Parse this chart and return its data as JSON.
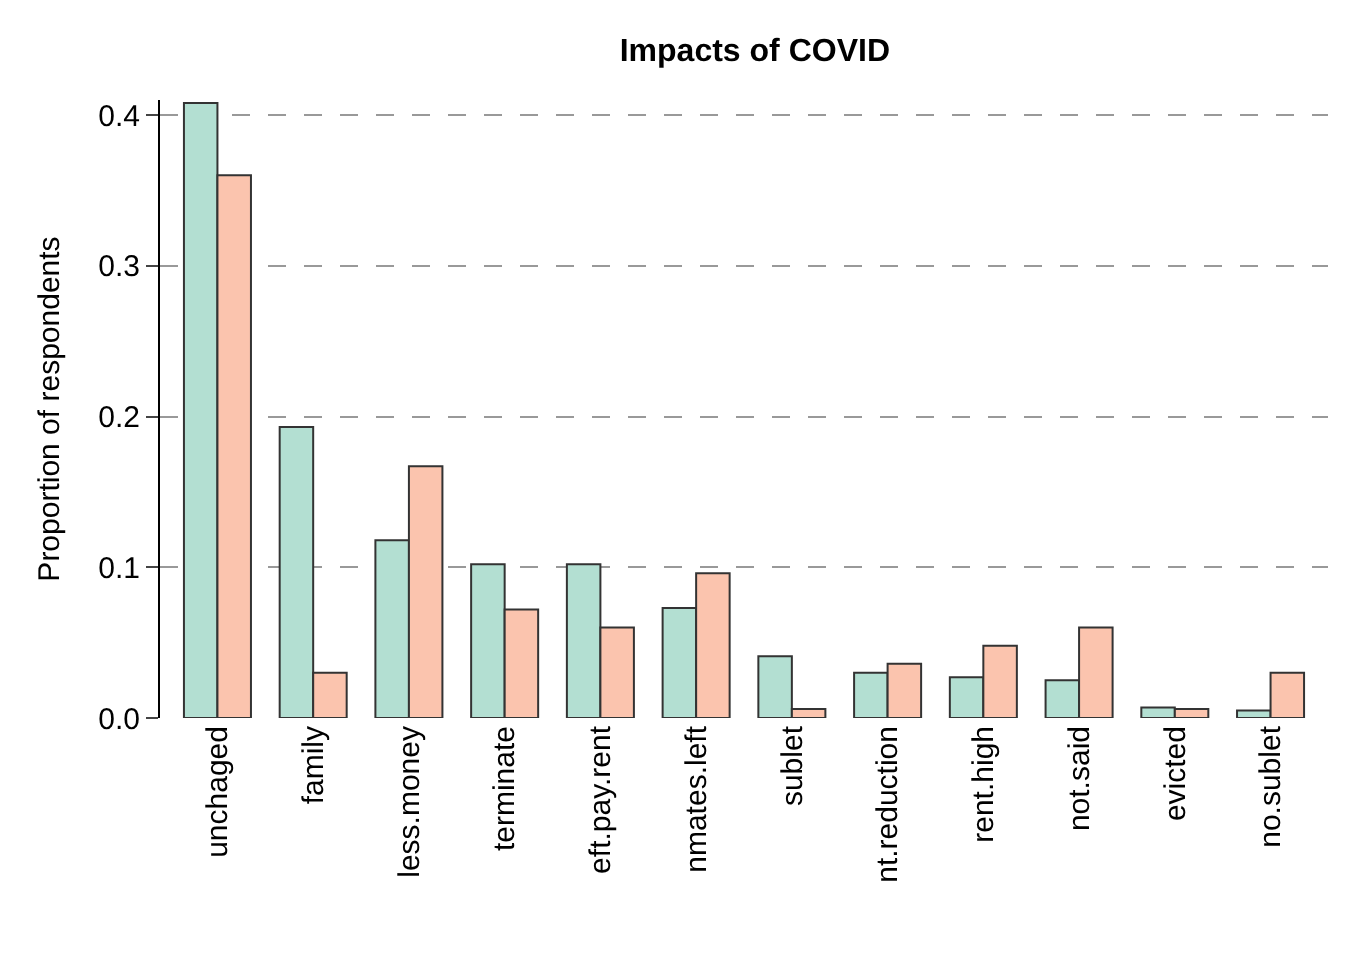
{
  "chart_data": {
    "type": "bar",
    "title": "Impacts of COVID",
    "ylabel": "Proportion of respondents",
    "categories": [
      "unchaged",
      "family",
      "less.money",
      "terminate",
      "eft.pay.rent",
      "nmates.left",
      "sublet",
      "nt.reduction",
      "rent.high",
      "not.said",
      "evicted",
      "no.sublet"
    ],
    "series": [
      {
        "color": "#b3dfd2",
        "values": [
          0.408,
          0.193,
          0.118,
          0.102,
          0.102,
          0.073,
          0.041,
          0.03,
          0.027,
          0.025,
          0.007,
          0.005
        ]
      },
      {
        "color": "#fbc4ae",
        "values": [
          0.36,
          0.03,
          0.167,
          0.072,
          0.06,
          0.096,
          0.006,
          0.036,
          0.048,
          0.06,
          0.006,
          0.03
        ]
      }
    ],
    "ylim": [
      0,
      0.41
    ],
    "yticks": [
      {
        "value": 0,
        "label": "0.0"
      },
      {
        "value": 0.1,
        "label": "0.1"
      },
      {
        "value": 0.2,
        "label": "0.2"
      },
      {
        "value": 0.3,
        "label": "0.3"
      },
      {
        "value": 0.4,
        "label": "0.4"
      }
    ],
    "grid": "y"
  }
}
